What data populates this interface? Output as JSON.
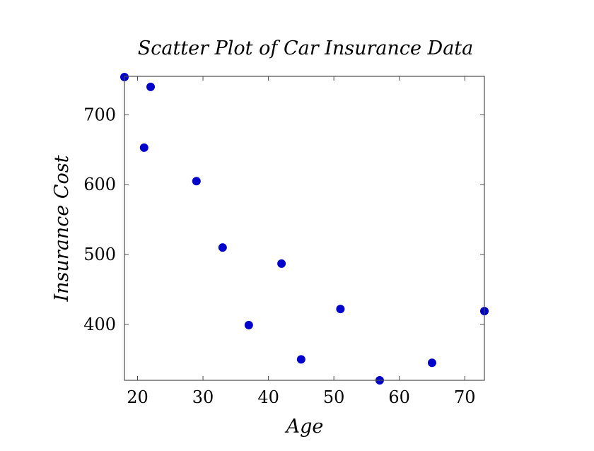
{
  "chart_data": {
    "type": "scatter",
    "title": "Scatter Plot of Car Insurance Data",
    "xlabel": "Age",
    "ylabel": "Insurance Cost",
    "xlim": [
      18,
      73
    ],
    "ylim": [
      320,
      755
    ],
    "xticks": [
      20,
      30,
      40,
      50,
      60,
      70
    ],
    "yticks": [
      400,
      500,
      600,
      700
    ],
    "grid": false,
    "marker_color": "#0000cc",
    "series": [
      {
        "x": [
          18,
          21,
          22,
          29,
          33,
          37,
          42,
          45,
          51,
          57,
          65,
          73
        ],
        "y": [
          754,
          653,
          740,
          605,
          510,
          399,
          487,
          350,
          422,
          320,
          345,
          419
        ]
      }
    ]
  }
}
